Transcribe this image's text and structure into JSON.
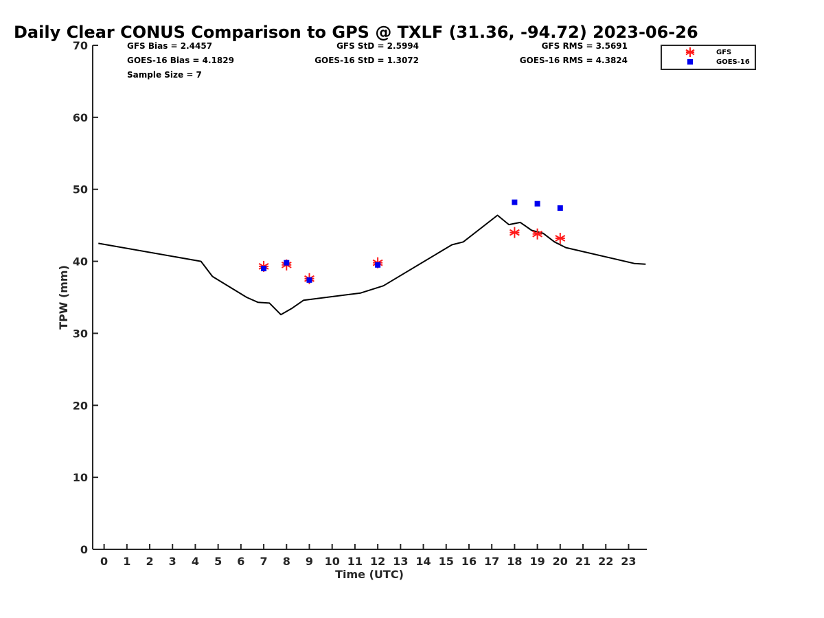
{
  "chart_data": {
    "type": "line",
    "title": "Daily Clear CONUS Comparison to GPS @ TXLF (31.36, -94.72) 2023-06-26",
    "xlabel": "Time (UTC)",
    "ylabel": "TPW (mm)",
    "xlim": [
      -0.5,
      23.8
    ],
    "ylim": [
      0,
      70
    ],
    "x_ticks": [
      0,
      1,
      2,
      3,
      4,
      5,
      6,
      7,
      8,
      9,
      10,
      11,
      12,
      13,
      14,
      15,
      16,
      17,
      18,
      19,
      20,
      21,
      22,
      23
    ],
    "x_tick_labels": [
      "0",
      "1",
      "2",
      "3",
      "4",
      "5",
      "6",
      "7",
      "8",
      "9",
      "10",
      "11",
      "12",
      "13",
      "14",
      "15",
      "16",
      "17",
      "18",
      "19",
      "20",
      "21",
      "22",
      "23"
    ],
    "y_ticks": [
      0,
      10,
      20,
      30,
      40,
      50,
      60,
      70
    ],
    "y_tick_labels": [
      "0",
      "10",
      "20",
      "30",
      "40",
      "50",
      "60",
      "70"
    ],
    "grid": false,
    "stats": {
      "gfs_bias": "GFS Bias = 2.4457",
      "goes_bias": "GOES-16 Bias = 4.1829",
      "sample_size": "Sample Size = 7",
      "gfs_std": "GFS StD = 2.5994",
      "goes_std": "GOES-16 StD = 1.3072",
      "gfs_rms": "GFS RMS = 3.5691",
      "goes_rms": "GOES-16 RMS = 4.3824"
    },
    "legend_position": "top-right",
    "series": [
      {
        "name": "GPS",
        "kind": "line",
        "color": "#000000",
        "x": [
          -0.25,
          4.25,
          4.75,
          6.25,
          6.75,
          7.25,
          7.75,
          8.25,
          8.75,
          11.25,
          12.25,
          15.25,
          15.75,
          17.25,
          17.75,
          18.25,
          18.75,
          19.25,
          19.75,
          20.25,
          23.25,
          23.75
        ],
        "y": [
          42.5,
          40.0,
          37.9,
          35.0,
          34.3,
          34.2,
          32.6,
          33.5,
          34.6,
          35.6,
          36.6,
          42.3,
          42.7,
          46.4,
          45.1,
          45.4,
          44.3,
          43.9,
          42.7,
          41.9,
          39.7,
          39.6
        ]
      },
      {
        "name": "GFS",
        "kind": "scatter",
        "marker": "asterisk",
        "color": "#ff1a1a",
        "x": [
          7,
          8,
          9,
          12,
          18,
          19,
          20
        ],
        "y": [
          39.3,
          39.5,
          37.6,
          39.8,
          44.0,
          43.8,
          43.2
        ]
      },
      {
        "name": "GOES-16",
        "kind": "scatter",
        "marker": "square",
        "color": "#0000ee",
        "x": [
          7,
          8,
          9,
          12,
          18,
          19,
          20
        ],
        "y": [
          39.0,
          39.8,
          37.4,
          39.5,
          48.2,
          48.0,
          47.4
        ]
      }
    ],
    "legend": [
      {
        "label": "GFS",
        "series": "GFS"
      },
      {
        "label": "GOES-16",
        "series": "GOES-16"
      }
    ]
  }
}
